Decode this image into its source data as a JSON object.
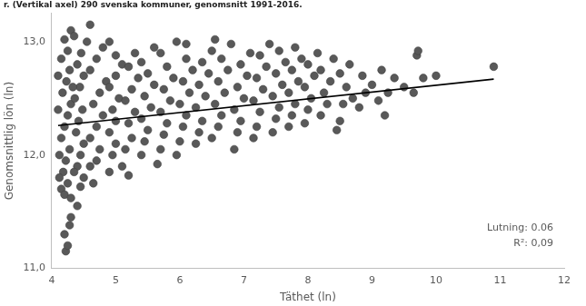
{
  "chart_data": {
    "type": "scatter",
    "title": "r. (Vertikal axel) 290 svenska kommuner, genomsnitt 1991-2016.",
    "x_label": "Täthet (ln)",
    "y_label": "Genomsnittlig lön (ln)",
    "xlim": [
      4,
      12
    ],
    "xticks": [
      4,
      5,
      6,
      7,
      8,
      9,
      10,
      11,
      12
    ],
    "ylim": [
      11,
      13.25
    ],
    "yticks": [
      {
        "value": 11,
        "label": "11,0"
      },
      {
        "value": 12,
        "label": "12,0"
      },
      {
        "value": 13,
        "label": "13,0"
      }
    ],
    "grid": false,
    "annotations": [
      "Lutning: 0.06",
      "R²: 0,09"
    ],
    "series": [
      {
        "type": "scatter",
        "color": "#595959",
        "marker": "circle",
        "x": [
          4.15,
          4.2,
          4.25,
          4.3,
          4.18,
          4.22,
          4.28,
          4.15,
          4.2,
          4.25,
          4.3,
          4.17,
          4.23,
          4.28,
          4.15,
          4.25,
          4.3,
          4.2,
          4.35,
          4.22,
          4.25,
          4.28,
          4.2,
          4.3,
          4.4,
          4.45,
          4.5,
          4.4,
          4.45,
          4.5,
          4.38,
          4.42,
          4.48,
          4.36,
          4.44,
          4.5,
          4.4,
          4.46,
          4.55,
          4.6,
          4.6,
          4.65,
          4.7,
          4.75,
          4.6,
          4.7,
          4.8,
          4.65,
          4.75,
          4.85,
          4.6,
          4.7,
          4.8,
          4.9,
          4.9,
          4.95,
          5.0,
          4.9,
          5.0,
          4.95,
          5.05,
          4.9,
          5.0,
          5.1,
          5.0,
          5.1,
          5.2,
          5.15,
          5.25,
          5.2,
          5.3,
          5.15,
          5.25,
          5.35,
          5.2,
          5.3,
          5.4,
          5.45,
          5.5,
          5.4,
          5.55,
          5.45,
          5.6,
          5.5,
          5.4,
          5.6,
          5.65,
          5.7,
          5.75,
          5.8,
          5.7,
          5.85,
          5.75,
          5.9,
          5.8,
          5.7,
          5.95,
          6.0,
          6.05,
          6.1,
          6.0,
          6.15,
          6.05,
          6.2,
          6.1,
          5.95,
          6.1,
          6.25,
          6.3,
          6.35,
          6.25,
          6.4,
          6.3,
          6.45,
          6.35,
          6.5,
          6.55,
          6.5,
          6.6,
          6.65,
          6.55,
          6.7,
          6.6,
          6.75,
          6.65,
          6.8,
          6.85,
          6.9,
          6.95,
          6.85,
          7.0,
          6.9,
          7.05,
          6.95,
          7.1,
          7.15,
          7.2,
          7.25,
          7.15,
          7.3,
          7.2,
          7.35,
          7.25,
          7.4,
          7.45,
          7.5,
          7.55,
          7.45,
          7.6,
          7.5,
          7.65,
          7.55,
          7.7,
          7.75,
          7.8,
          7.7,
          7.85,
          7.75,
          7.9,
          7.8,
          7.95,
          8.0,
          8.05,
          7.95,
          8.1,
          8.0,
          8.15,
          8.2,
          8.3,
          8.25,
          8.35,
          8.2,
          8.4,
          8.5,
          8.55,
          8.6,
          8.5,
          8.65,
          8.45,
          8.7,
          8.8,
          8.9,
          8.85,
          9.0,
          9.1,
          9.2,
          9.25,
          9.15,
          9.35,
          9.5,
          9.65,
          9.7,
          9.72,
          9.8,
          10.0,
          10.9,
          4.1,
          4.12,
          4.1,
          4.12,
          4.35,
          4.33
        ],
        "values": [
          11.7,
          11.65,
          11.75,
          11.62,
          11.85,
          11.95,
          12.05,
          12.15,
          12.25,
          12.35,
          12.45,
          12.55,
          12.65,
          12.75,
          12.85,
          12.92,
          13.1,
          13.02,
          13.05,
          11.15,
          11.2,
          11.38,
          11.3,
          11.45,
          11.55,
          11.72,
          11.8,
          11.9,
          12.0,
          12.1,
          12.2,
          12.3,
          12.4,
          12.5,
          12.6,
          12.7,
          12.8,
          12.9,
          13.0,
          13.15,
          11.9,
          11.75,
          11.95,
          12.05,
          12.15,
          12.25,
          12.35,
          12.45,
          12.55,
          12.65,
          12.75,
          12.85,
          12.95,
          13.0,
          11.85,
          12.0,
          12.1,
          12.2,
          12.3,
          12.4,
          12.5,
          12.6,
          12.7,
          12.8,
          12.88,
          11.9,
          11.82,
          12.05,
          12.15,
          12.28,
          12.38,
          12.48,
          12.58,
          12.68,
          12.78,
          12.9,
          12.0,
          12.12,
          12.22,
          12.32,
          12.42,
          12.52,
          12.62,
          12.72,
          12.82,
          12.95,
          11.92,
          12.05,
          12.18,
          12.28,
          12.38,
          12.48,
          12.58,
          12.68,
          12.78,
          12.9,
          12.0,
          12.12,
          12.25,
          12.35,
          12.45,
          12.55,
          12.65,
          12.75,
          12.85,
          13.0,
          12.98,
          12.1,
          12.2,
          12.3,
          12.42,
          12.52,
          12.62,
          12.72,
          12.82,
          12.92,
          13.02,
          12.15,
          12.25,
          12.35,
          12.45,
          12.55,
          12.65,
          12.75,
          12.85,
          12.98,
          12.05,
          12.2,
          12.3,
          12.4,
          12.5,
          12.6,
          12.7,
          12.8,
          12.9,
          12.15,
          12.25,
          12.38,
          12.48,
          12.58,
          12.68,
          12.78,
          12.88,
          12.98,
          12.2,
          12.32,
          12.42,
          12.52,
          12.62,
          12.72,
          12.82,
          12.92,
          12.25,
          12.35,
          12.45,
          12.55,
          12.65,
          12.75,
          12.85,
          12.95,
          12.28,
          12.4,
          12.5,
          12.6,
          12.7,
          12.8,
          12.9,
          12.35,
          12.45,
          12.55,
          12.65,
          12.75,
          12.85,
          12.3,
          12.45,
          12.6,
          12.72,
          12.8,
          12.22,
          12.5,
          12.42,
          12.55,
          12.7,
          12.62,
          12.48,
          12.35,
          12.55,
          12.75,
          12.68,
          12.6,
          12.55,
          12.88,
          12.92,
          12.68,
          12.7,
          12.78,
          12.4,
          12.0,
          12.7,
          11.8,
          11.85,
          12.6
        ]
      },
      {
        "type": "line",
        "color": "#000000",
        "line_style": "solid",
        "x": [
          4.1,
          10.9
        ],
        "values": [
          12.26,
          12.67
        ]
      }
    ]
  }
}
